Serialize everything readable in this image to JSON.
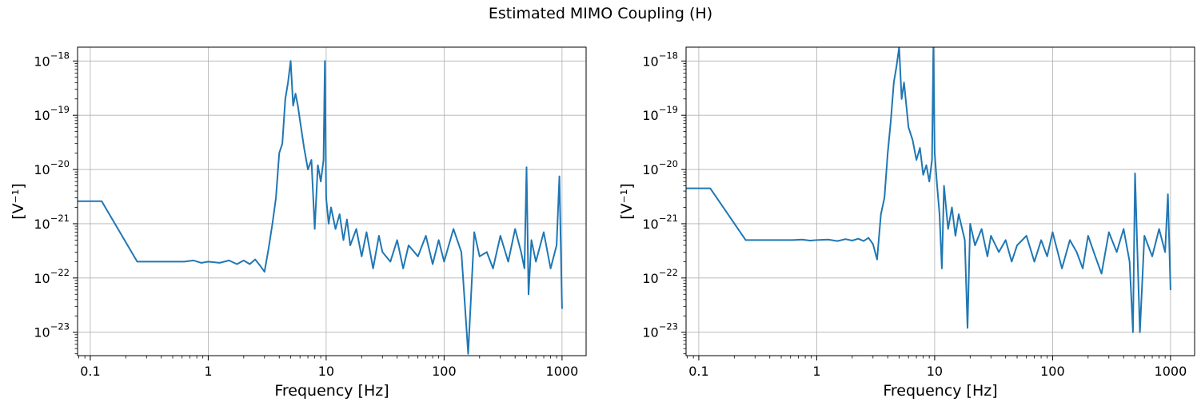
{
  "figure": {
    "title": "Estimated MIMO Coupling (H)"
  },
  "chart_data": [
    {
      "type": "line",
      "xscale": "log",
      "yscale": "log",
      "xlabel": "Frequency [Hz]",
      "ylabel": "[V⁻¹]",
      "xlim": [
        0.078,
        1600
      ],
      "ylim": [
        3.7e-24,
        1.8e-18
      ],
      "xticks": [
        {
          "v": 0.1,
          "label": "0.1"
        },
        {
          "v": 1,
          "label": "1"
        },
        {
          "v": 10,
          "label": "10"
        },
        {
          "v": 100,
          "label": "100"
        },
        {
          "v": 1000,
          "label": "1000"
        }
      ],
      "yticks": [
        {
          "exp": -23,
          "label": "−23"
        },
        {
          "exp": -22,
          "label": "−22"
        },
        {
          "exp": -21,
          "label": "−21"
        },
        {
          "exp": -20,
          "label": "−20"
        },
        {
          "exp": -19,
          "label": "−19"
        },
        {
          "exp": -18,
          "label": "−18"
        }
      ],
      "grid": true,
      "color": "#1f77b4",
      "x": [
        0.0625,
        0.125,
        0.25,
        0.375,
        0.5,
        0.625,
        0.75,
        0.875,
        1.0,
        1.25,
        1.5,
        1.75,
        2.0,
        2.25,
        2.5,
        2.75,
        3.0,
        3.25,
        3.5,
        3.75,
        4.0,
        4.25,
        4.5,
        4.75,
        5.0,
        5.25,
        5.5,
        5.75,
        6.0,
        6.5,
        7.0,
        7.5,
        8.0,
        8.5,
        9.0,
        9.5,
        9.75,
        10.0,
        10.5,
        11.0,
        12.0,
        13.0,
        14.0,
        15.0,
        16.0,
        18.0,
        20.0,
        22.0,
        25.0,
        28.0,
        30.0,
        35.0,
        40.0,
        45.0,
        50.0,
        60.0,
        70.0,
        80.0,
        90.0,
        100.0,
        120.0,
        140.0,
        160.0,
        180.0,
        200.0,
        230.0,
        260.0,
        300.0,
        350.0,
        400.0,
        450.0,
        480.0,
        500.0,
        520.0,
        550.0,
        600.0,
        700.0,
        800.0,
        900.0,
        950.0,
        1000.0
      ],
      "values": [
        2.6e-21,
        2.6e-21,
        2e-22,
        2e-22,
        2e-22,
        2e-22,
        2.1e-22,
        1.9e-22,
        2e-22,
        1.9e-22,
        2.1e-22,
        1.8e-22,
        2.1e-22,
        1.8e-22,
        2.2e-22,
        1.7e-22,
        1.3e-22,
        3.5e-22,
        1e-21,
        3e-21,
        2e-20,
        3e-20,
        2e-19,
        4e-19,
        1e-18,
        1.5e-19,
        2.5e-19,
        1.5e-19,
        8e-20,
        2.5e-20,
        1e-20,
        1.5e-20,
        8e-22,
        1.2e-20,
        6e-21,
        1.5e-20,
        1e-18,
        3e-21,
        1e-21,
        2e-21,
        8e-22,
        1.5e-21,
        5e-22,
        1.2e-21,
        4e-22,
        8e-22,
        2.5e-22,
        7e-22,
        1.5e-22,
        6e-22,
        3e-22,
        2e-22,
        5e-22,
        1.5e-22,
        4e-22,
        2.5e-22,
        6e-22,
        1.8e-22,
        5e-22,
        2e-22,
        8e-22,
        3e-22,
        4e-24,
        7e-22,
        2.5e-22,
        3e-22,
        1.5e-22,
        6e-22,
        2e-22,
        8e-22,
        3e-22,
        1.5e-22,
        1.1e-20,
        5e-23,
        5e-22,
        2e-22,
        7e-22,
        1.5e-22,
        4e-22,
        7.5e-21,
        2.7e-23
      ]
    },
    {
      "type": "line",
      "xscale": "log",
      "yscale": "log",
      "xlabel": "Frequency [Hz]",
      "ylabel": "[V⁻¹]",
      "xlim": [
        0.078,
        1600
      ],
      "ylim": [
        3.7e-24,
        1.8e-18
      ],
      "xticks": [
        {
          "v": 0.1,
          "label": "0.1"
        },
        {
          "v": 1,
          "label": "1"
        },
        {
          "v": 10,
          "label": "10"
        },
        {
          "v": 100,
          "label": "100"
        },
        {
          "v": 1000,
          "label": "1000"
        }
      ],
      "yticks": [
        {
          "exp": -23,
          "label": "−23"
        },
        {
          "exp": -22,
          "label": "−22"
        },
        {
          "exp": -21,
          "label": "−21"
        },
        {
          "exp": -20,
          "label": "−20"
        },
        {
          "exp": -19,
          "label": "−19"
        },
        {
          "exp": -18,
          "label": "−18"
        }
      ],
      "grid": true,
      "color": "#1f77b4",
      "x": [
        0.0625,
        0.125,
        0.25,
        0.375,
        0.5,
        0.625,
        0.75,
        0.875,
        1.0,
        1.25,
        1.5,
        1.75,
        2.0,
        2.25,
        2.5,
        2.75,
        3.0,
        3.25,
        3.5,
        3.75,
        4.0,
        4.25,
        4.5,
        4.75,
        5.0,
        5.25,
        5.5,
        5.75,
        6.0,
        6.5,
        7.0,
        7.5,
        8.0,
        8.5,
        9.0,
        9.5,
        9.75,
        10.0,
        10.5,
        11.0,
        11.5,
        12.0,
        13.0,
        14.0,
        15.0,
        16.0,
        18.0,
        19.0,
        20.0,
        22.0,
        25.0,
        28.0,
        30.0,
        35.0,
        40.0,
        45.0,
        50.0,
        60.0,
        70.0,
        80.0,
        90.0,
        100.0,
        120.0,
        140.0,
        160.0,
        180.0,
        200.0,
        230.0,
        260.0,
        300.0,
        350.0,
        400.0,
        450.0,
        480.0,
        500.0,
        520.0,
        550.0,
        600.0,
        700.0,
        800.0,
        900.0,
        950.0,
        1000.0
      ],
      "values": [
        4.5e-21,
        4.5e-21,
        5e-22,
        5e-22,
        5e-22,
        5e-22,
        5.1e-22,
        4.9e-22,
        5e-22,
        5.1e-22,
        4.8e-22,
        5.2e-22,
        4.9e-22,
        5.3e-22,
        4.8e-22,
        5.5e-22,
        4.2e-22,
        2.2e-22,
        1.5e-21,
        3e-21,
        2e-20,
        8e-20,
        4e-19,
        8e-19,
        1.8e-18,
        2e-19,
        4e-19,
        1.5e-19,
        6e-20,
        3.5e-20,
        1.5e-20,
        2.5e-20,
        8e-21,
        1.2e-20,
        6e-21,
        1.5e-20,
        1.8e-18,
        2e-20,
        5e-21,
        1.5e-21,
        1.5e-22,
        5e-21,
        8e-22,
        2e-21,
        6e-22,
        1.5e-21,
        5e-22,
        1.2e-23,
        1e-21,
        4e-22,
        8e-22,
        2.5e-22,
        6e-22,
        3e-22,
        5e-22,
        2e-22,
        4e-22,
        6e-22,
        2e-22,
        5e-22,
        2.5e-22,
        7e-22,
        1.5e-22,
        5e-22,
        3e-22,
        1.5e-22,
        6e-22,
        2.5e-22,
        1.2e-22,
        7e-22,
        3e-22,
        8e-22,
        2e-22,
        1e-23,
        8.5e-21,
        5e-22,
        1e-23,
        6e-22,
        2.5e-22,
        8e-22,
        3e-22,
        3.5e-21,
        6e-23
      ]
    }
  ]
}
